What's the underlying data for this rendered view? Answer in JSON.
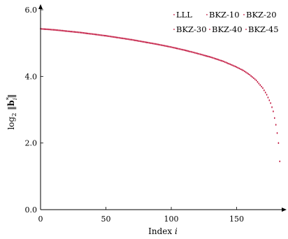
{
  "chart_data": {
    "type": "scatter",
    "title": "",
    "xlabel": "Index i",
    "ylabel": "log2 ||b*_i||",
    "xlim": [
      0,
      185
    ],
    "ylim": [
      0.0,
      6.0
    ],
    "x_ticks": [
      0,
      50,
      100,
      150
    ],
    "x_tick_labels": [
      "0",
      "50",
      "100",
      "150"
    ],
    "y_ticks": [
      0.0,
      2.0,
      4.0,
      6.0
    ],
    "y_tick_labels": [
      "0.0",
      "2.0",
      "4.0",
      "6.0"
    ],
    "grid": false,
    "legend_placement": "top-right",
    "legend": [
      "LLL",
      "BKZ-10",
      "BKZ-20",
      "BKZ-30",
      "BKZ-40",
      "BKZ-45"
    ],
    "series_color": "#c0103a",
    "x": [
      0,
      10,
      20,
      30,
      40,
      50,
      60,
      70,
      80,
      90,
      100,
      110,
      120,
      130,
      140,
      150,
      155,
      160,
      165,
      170,
      173,
      176,
      178,
      180,
      181,
      182,
      183
    ],
    "y": [
      5.43,
      5.4,
      5.36,
      5.32,
      5.27,
      5.22,
      5.16,
      5.1,
      5.03,
      4.96,
      4.88,
      4.79,
      4.69,
      4.58,
      4.45,
      4.28,
      4.18,
      4.05,
      3.88,
      3.65,
      3.45,
      3.2,
      2.95,
      2.55,
      2.3,
      2.0,
      1.45
    ]
  }
}
